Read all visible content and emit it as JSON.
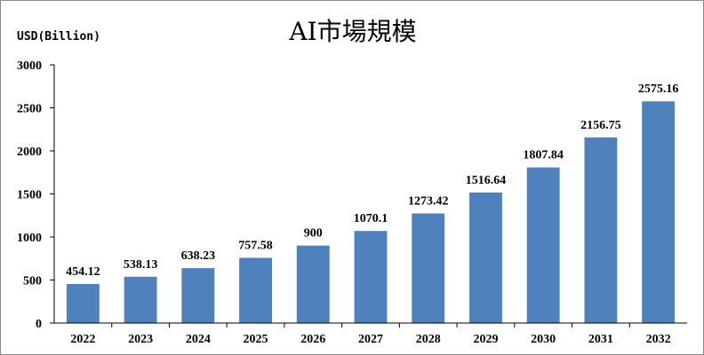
{
  "chart_data": {
    "type": "bar",
    "title": "AI市場規模",
    "ylabel": "USD(Billion)",
    "xlabel": "",
    "categories": [
      "2022",
      "2023",
      "2024",
      "2025",
      "2026",
      "2027",
      "2028",
      "2029",
      "2030",
      "2031",
      "2032"
    ],
    "values": [
      454.12,
      538.13,
      638.23,
      757.58,
      900,
      1070.1,
      1273.42,
      1516.64,
      1807.84,
      2156.75,
      2575.16
    ],
    "value_labels": [
      "454.12",
      "538.13",
      "638.23",
      "757.58",
      "900",
      "1070.1",
      "1273.42",
      "1516.64",
      "1807.84",
      "2156.75",
      "2575.16"
    ],
    "ylim": [
      0,
      3000
    ],
    "yticks": [
      0,
      500,
      1000,
      1500,
      2000,
      2500,
      3000
    ],
    "grid": false,
    "legend": "none",
    "bar_color": "#4f81bd"
  }
}
